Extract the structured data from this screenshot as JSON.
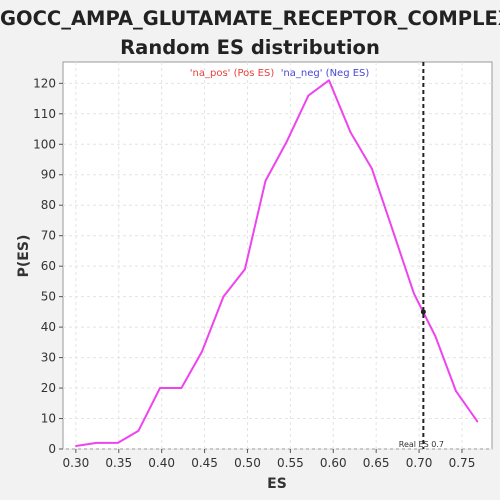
{
  "title_line1": "GOCC_AMPA_GLUTAMATE_RECEPTOR_COMPLEX:",
  "title_line2": "Random ES distribution",
  "chart_data": {
    "type": "line",
    "xlabel": "ES",
    "ylabel": "P(ES)",
    "xlim": [
      0.285,
      0.785
    ],
    "ylim": [
      0,
      127
    ],
    "x_ticks": [
      0.3,
      0.35,
      0.4,
      0.45,
      0.5,
      0.55,
      0.6,
      0.65,
      0.7,
      0.75
    ],
    "x_tick_labels": [
      "0.30",
      "0.35",
      "0.40",
      "0.45",
      "0.50",
      "0.55",
      "0.60",
      "0.65",
      "0.70",
      "0.75"
    ],
    "y_ticks": [
      0,
      10,
      20,
      30,
      40,
      50,
      60,
      70,
      80,
      90,
      100,
      110,
      120
    ],
    "grid": true,
    "legend": [
      {
        "label": "'na_pos' (Pos ES)",
        "color": "#e8413c"
      },
      {
        "label": "'na_neg' (Neg ES)",
        "color": "#4848d8"
      }
    ],
    "series": [
      {
        "color": "#ee44ee",
        "x": [
          0.3,
          0.324,
          0.349,
          0.373,
          0.398,
          0.423,
          0.447,
          0.472,
          0.497,
          0.521,
          0.546,
          0.571,
          0.595,
          0.62,
          0.645,
          0.669,
          0.694,
          0.719,
          0.743,
          0.768
        ],
        "y": [
          1,
          2,
          2,
          6,
          20,
          20,
          32,
          50,
          59,
          88,
          101,
          116,
          121,
          104,
          92,
          72,
          51,
          37,
          19,
          9
        ]
      }
    ],
    "real_es": {
      "x": 0.705,
      "label": "Real ES 0.7",
      "marker_y": 45
    }
  }
}
